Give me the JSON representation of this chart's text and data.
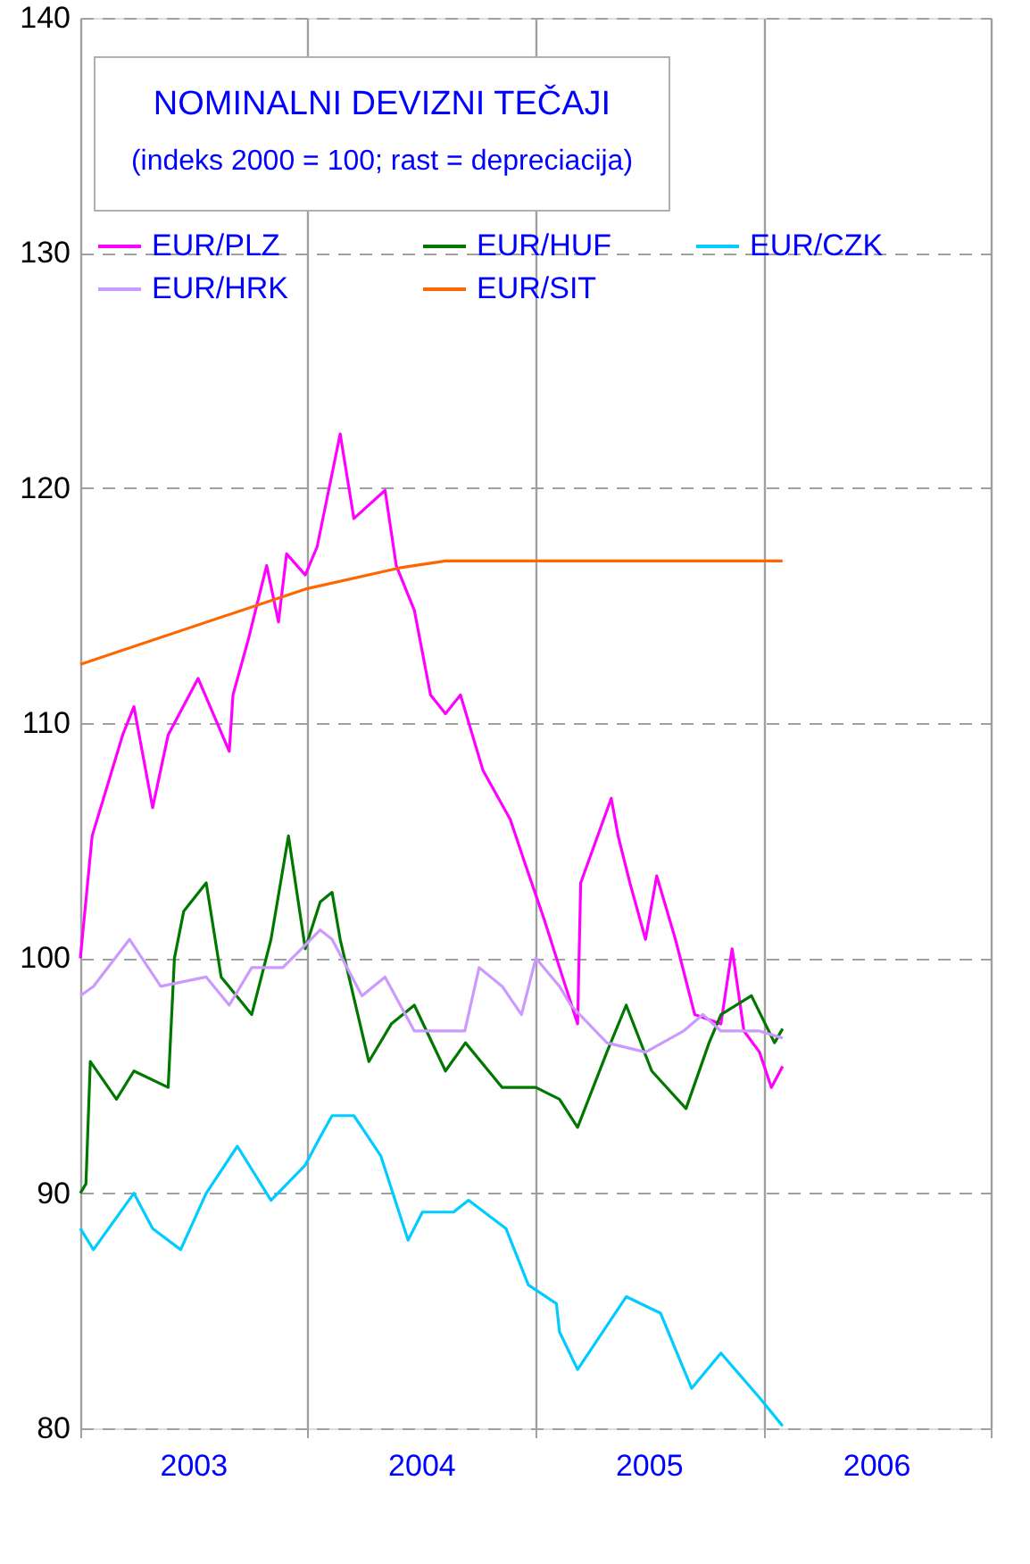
{
  "chart_data": {
    "type": "line",
    "title": "NOMINALNI DEVIZNI TEČAJI",
    "subtitle": "(indeks 2000 = 100; rast = depreciacija)",
    "xlim": [
      "2003-01-01",
      "2007-01-01"
    ],
    "xticks": [
      {
        "value": "2003-01-01",
        "label": null
      },
      {
        "value": "2003-07-01",
        "label": "2003"
      },
      {
        "value": "2004-01-01",
        "label": null
      },
      {
        "value": "2004-07-01",
        "label": "2004"
      },
      {
        "value": "2005-01-01",
        "label": null
      },
      {
        "value": "2005-07-01",
        "label": "2005"
      },
      {
        "value": "2006-01-01",
        "label": null
      },
      {
        "value": "2006-07-01",
        "label": "2006"
      },
      {
        "value": "2007-01-01",
        "label": null
      }
    ],
    "ylim": [
      80,
      140
    ],
    "yticks": [
      80,
      90,
      100,
      110,
      120,
      130,
      140
    ],
    "grid": true,
    "legend": "top",
    "series": [
      {
        "name": "EUR/PLZ",
        "color": "#ff00ff",
        "x": [
          "2003-01-01",
          "2003-01-20",
          "2003-03-10",
          "2003-03-28",
          "2003-04-27",
          "2003-05-22",
          "2003-07-09",
          "2003-08-28",
          "2003-09-03",
          "2003-09-28",
          "2003-10-27",
          "2003-11-15",
          "2003-11-28",
          "2003-12-28",
          "2004-01-16",
          "2004-02-22",
          "2004-03-15",
          "2004-05-04",
          "2004-05-22",
          "2004-06-20",
          "2004-07-16",
          "2004-08-09",
          "2004-09-02",
          "2004-10-08",
          "2004-11-21",
          "2004-12-15",
          "2005-01-15",
          "2005-02-08",
          "2005-03-09",
          "2005-03-14",
          "2005-05-02",
          "2005-05-13",
          "2005-06-01",
          "2005-06-26",
          "2005-07-14",
          "2005-08-13",
          "2005-09-13",
          "2005-10-25",
          "2005-11-12",
          "2005-12-01",
          "2005-12-26",
          "2006-01-14",
          "2006-02-01"
        ],
        "values": [
          100.0,
          105.2,
          109.5,
          110.7,
          106.4,
          109.5,
          111.9,
          108.8,
          111.2,
          113.6,
          116.7,
          114.3,
          117.2,
          116.3,
          117.5,
          122.3,
          118.7,
          119.9,
          116.7,
          114.8,
          111.2,
          110.4,
          111.2,
          108.0,
          105.9,
          104.0,
          101.6,
          99.6,
          97.2,
          103.2,
          106.8,
          105.2,
          103.2,
          100.8,
          103.5,
          100.8,
          97.6,
          97.2,
          100.4,
          96.9,
          96.0,
          94.5,
          95.4
        ]
      },
      {
        "name": "EUR/HUF",
        "color": "#007800",
        "x": [
          "2003-01-01",
          "2003-01-10",
          "2003-01-17",
          "2003-02-28",
          "2003-03-28",
          "2003-05-22",
          "2003-06-01",
          "2003-06-16",
          "2003-07-22",
          "2003-08-15",
          "2003-10-03",
          "2003-11-03",
          "2003-12-01",
          "2003-12-28",
          "2004-01-21",
          "2004-02-09",
          "2004-02-22",
          "2004-04-08",
          "2004-05-14",
          "2004-06-20",
          "2004-08-09",
          "2004-09-10",
          "2004-11-08",
          "2005-01-01",
          "2005-02-08",
          "2005-03-09",
          "2005-04-25",
          "2005-05-26",
          "2005-07-06",
          "2005-08-30",
          "2005-10-06",
          "2005-10-25",
          "2005-12-13",
          "2006-01-19",
          "2006-02-01"
        ],
        "values": [
          90.0,
          90.4,
          95.6,
          94.0,
          95.2,
          94.5,
          100.0,
          102.0,
          103.2,
          99.2,
          97.6,
          100.8,
          105.2,
          100.4,
          102.4,
          102.8,
          100.8,
          95.6,
          97.2,
          98.0,
          95.2,
          96.4,
          94.5,
          94.5,
          94.0,
          92.8,
          96.0,
          98.0,
          95.2,
          93.6,
          96.4,
          97.6,
          98.4,
          96.4,
          97.0
        ]
      },
      {
        "name": "EUR/CZK",
        "color": "#00ccff",
        "x": [
          "2003-01-01",
          "2003-01-22",
          "2003-03-28",
          "2003-04-27",
          "2003-06-11",
          "2003-07-22",
          "2003-09-10",
          "2003-11-03",
          "2003-12-28",
          "2004-01-21",
          "2004-02-09",
          "2004-03-15",
          "2004-04-27",
          "2004-06-10",
          "2004-07-03",
          "2004-08-22",
          "2004-09-15",
          "2004-11-14",
          "2004-12-20",
          "2005-02-03",
          "2005-02-08",
          "2005-03-09",
          "2005-05-26",
          "2005-07-20",
          "2005-09-08",
          "2005-10-25",
          "2005-12-26",
          "2006-02-01"
        ],
        "values": [
          88.5,
          87.6,
          90.0,
          88.5,
          87.6,
          90.0,
          92.0,
          89.7,
          91.2,
          92.4,
          93.3,
          93.3,
          91.6,
          88.0,
          89.2,
          89.2,
          89.7,
          88.5,
          86.1,
          85.3,
          84.1,
          82.5,
          85.6,
          84.9,
          81.7,
          83.2,
          81.3,
          80.1
        ]
      },
      {
        "name": "EUR/HRK",
        "color": "#cc99ff",
        "x": [
          "2003-01-01",
          "2003-01-22",
          "2003-03-21",
          "2003-05-10",
          "2003-07-22",
          "2003-08-28",
          "2003-10-03",
          "2003-11-22",
          "2004-01-21",
          "2004-02-09",
          "2004-03-28",
          "2004-05-04",
          "2004-06-20",
          "2004-08-09",
          "2004-09-09",
          "2004-10-02",
          "2004-11-08",
          "2004-12-09",
          "2005-01-01",
          "2005-02-08",
          "2005-02-26",
          "2005-04-25",
          "2005-06-26",
          "2005-08-26",
          "2005-09-26",
          "2005-10-25",
          "2005-12-26",
          "2006-02-01"
        ],
        "values": [
          98.4,
          98.8,
          100.8,
          98.8,
          99.2,
          98.0,
          99.6,
          99.6,
          101.2,
          100.8,
          98.4,
          99.2,
          96.9,
          96.9,
          96.9,
          99.6,
          98.8,
          97.6,
          100.0,
          98.8,
          98.0,
          96.4,
          96.0,
          96.9,
          97.6,
          96.9,
          96.9,
          96.6
        ]
      },
      {
        "name": "EUR/SIT",
        "color": "#ff6600",
        "x": [
          "2003-01-01",
          "2003-12-28",
          "2004-05-27",
          "2004-08-09",
          "2006-02-01"
        ],
        "values": [
          112.5,
          115.7,
          116.6,
          116.9,
          116.9
        ]
      }
    ]
  }
}
